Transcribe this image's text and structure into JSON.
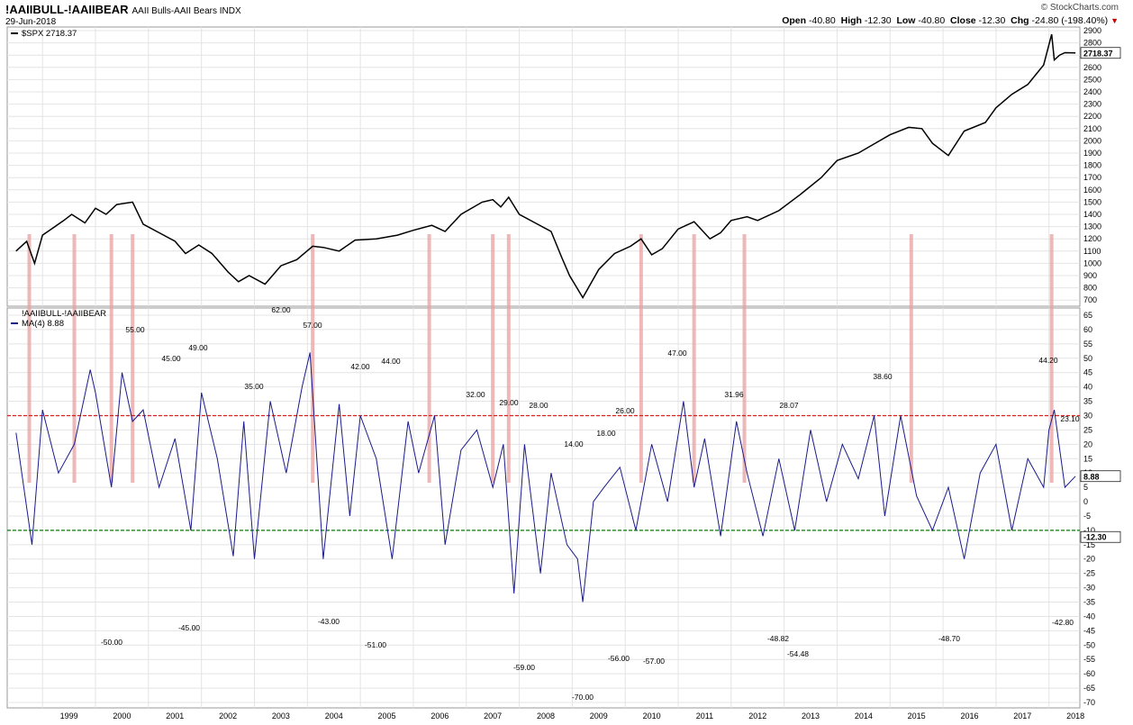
{
  "header": {
    "symbol": "!AAIIBULL-!AAIIBEAR",
    "description": "AAII Bulls-AAII Bears  INDX",
    "date": "29-Jun-2018",
    "brand": "© StockCharts.com",
    "open_label": "Open",
    "open_value": "-40.80",
    "high_label": "High",
    "high_value": "-12.30",
    "low_label": "Low",
    "low_value": "-40.80",
    "close_label": "Close",
    "close_value": "-12.30",
    "chg_label": "Chg",
    "chg_value": "-24.80 (-198.40%)"
  },
  "colors": {
    "spx_line": "#000000",
    "spread_line": "#1a1a8c",
    "highlight": "#e8a0a0",
    "upper_threshold": "#d62020",
    "lower_threshold": "#0a7a0a",
    "grid": "#e4e4e4"
  },
  "chart_data": [
    {
      "type": "line",
      "title": "$SPX",
      "legend": "$SPX 2718.37",
      "last_value_label": "2718.37",
      "ylim": [
        650,
        2900
      ],
      "yticks": [
        700,
        800,
        900,
        1000,
        1100,
        1200,
        1300,
        1400,
        1500,
        1600,
        1700,
        1800,
        1900,
        2000,
        2100,
        2200,
        2300,
        2400,
        2500,
        2600,
        2700,
        2800,
        2900
      ],
      "x": [
        1998.5,
        1998.7,
        1998.85,
        1999.0,
        1999.2,
        1999.4,
        1999.55,
        1999.8,
        2000.0,
        2000.2,
        2000.4,
        2000.7,
        2000.9,
        2001.2,
        2001.5,
        2001.7,
        2001.95,
        2002.2,
        2002.5,
        2002.7,
        2002.9,
        2003.2,
        2003.5,
        2003.8,
        2004.1,
        2004.3,
        2004.6,
        2004.9,
        2005.3,
        2005.7,
        2006.0,
        2006.35,
        2006.6,
        2006.9,
        2007.3,
        2007.5,
        2007.65,
        2007.8,
        2008.0,
        2008.3,
        2008.6,
        2008.8,
        2008.95,
        2009.2,
        2009.5,
        2009.8,
        2010.1,
        2010.3,
        2010.5,
        2010.7,
        2011.0,
        2011.3,
        2011.6,
        2011.8,
        2012.0,
        2012.3,
        2012.5,
        2012.9,
        2013.3,
        2013.7,
        2014.0,
        2014.4,
        2014.8,
        2015.0,
        2015.35,
        2015.6,
        2015.8,
        2016.1,
        2016.4,
        2016.8,
        2017.0,
        2017.3,
        2017.6,
        2017.9,
        2018.05,
        2018.1,
        2018.2,
        2018.3,
        2018.5
      ],
      "y": [
        1100,
        1180,
        1000,
        1230,
        1290,
        1350,
        1400,
        1330,
        1450,
        1400,
        1480,
        1500,
        1320,
        1250,
        1180,
        1080,
        1150,
        1080,
        930,
        850,
        900,
        830,
        980,
        1030,
        1140,
        1130,
        1100,
        1190,
        1200,
        1230,
        1270,
        1310,
        1260,
        1400,
        1500,
        1520,
        1460,
        1540,
        1400,
        1330,
        1260,
        1050,
        900,
        720,
        950,
        1080,
        1140,
        1200,
        1070,
        1120,
        1280,
        1340,
        1200,
        1250,
        1350,
        1380,
        1350,
        1430,
        1560,
        1700,
        1840,
        1900,
        2000,
        2050,
        2110,
        2100,
        1980,
        1880,
        2080,
        2150,
        2270,
        2380,
        2460,
        2620,
        2870,
        2660,
        2700,
        2720,
        2718
      ]
    },
    {
      "type": "line",
      "title": "!AAIIBULL-!AAIIBEAR",
      "legend_series": "!AAIIBULL-!AAIIBEAR",
      "legend_ma": "MA(4) 8.88",
      "last_value_label": "8.88",
      "close_value_label": "-12.30",
      "ylim": [
        -70,
        65
      ],
      "yticks": [
        65,
        60,
        55,
        50,
        45,
        40,
        35,
        30,
        25,
        20,
        15,
        10,
        5,
        0,
        -5,
        -10,
        -15,
        -20,
        -25,
        -30,
        -35,
        -40,
        -45,
        -50,
        -55,
        -60,
        -65,
        -70
      ],
      "thresholds": [
        30,
        -10
      ],
      "x": [
        1998.5,
        1998.8,
        1999.0,
        1999.3,
        1999.6,
        1999.9,
        2000.0,
        2000.3,
        2000.5,
        2000.7,
        2000.9,
        2001.2,
        2001.5,
        2001.8,
        2002.0,
        2002.3,
        2002.6,
        2002.8,
        2003.0,
        2003.3,
        2003.6,
        2003.9,
        2004.05,
        2004.3,
        2004.6,
        2004.8,
        2005.0,
        2005.3,
        2005.6,
        2005.9,
        2006.1,
        2006.4,
        2006.6,
        2006.9,
        2007.2,
        2007.5,
        2007.7,
        2007.9,
        2008.1,
        2008.4,
        2008.6,
        2008.9,
        2009.1,
        2009.2,
        2009.4,
        2009.6,
        2009.9,
        2010.2,
        2010.5,
        2010.8,
        2011.1,
        2011.3,
        2011.5,
        2011.8,
        2012.1,
        2012.3,
        2012.6,
        2012.9,
        2013.2,
        2013.5,
        2013.8,
        2014.1,
        2014.4,
        2014.7,
        2014.9,
        2015.2,
        2015.5,
        2015.8,
        2016.1,
        2016.4,
        2016.7,
        2017.0,
        2017.3,
        2017.6,
        2017.9,
        2018.0,
        2018.1,
        2018.3,
        2018.5
      ],
      "y": [
        24,
        -15,
        32,
        10,
        20,
        46,
        38,
        5,
        45,
        28,
        32,
        5,
        22,
        -10,
        38,
        15,
        -19,
        28,
        -20,
        35,
        10,
        40,
        52,
        -20,
        34,
        -5,
        30,
        15,
        -20,
        28,
        10,
        30,
        -15,
        18,
        25,
        5,
        20,
        -32,
        20,
        -25,
        10,
        -15,
        -20,
        -35,
        0,
        5,
        12,
        -10,
        20,
        0,
        35,
        5,
        22,
        -12,
        28,
        10,
        -12,
        15,
        -10,
        25,
        0,
        20,
        8,
        30,
        -5,
        30,
        2,
        -10,
        5,
        -20,
        10,
        20,
        -10,
        15,
        5,
        25,
        32,
        5,
        8.88
      ],
      "peak_labels": [
        "62.00",
        "57.00",
        "55.00",
        "49.00",
        "45.00",
        "35.00",
        "42.00",
        "44.00",
        "32.00",
        "29.00",
        "28.00",
        "14.00",
        "18.00",
        "26.00",
        "47.00",
        "31.96",
        "28.07",
        "38.60",
        "44.20",
        "23.10"
      ],
      "trough_labels": [
        "-50.00",
        "-45.00",
        "-43.00",
        "-51.00",
        "-59.00",
        "-70.00",
        "-56.00",
        "-57.00",
        "-48.82",
        "-54.48",
        "-48.70",
        "-42.80"
      ]
    }
  ],
  "x_axis": {
    "years": [
      "1999",
      "2000",
      "2001",
      "2002",
      "2003",
      "2004",
      "2005",
      "2006",
      "2007",
      "2008",
      "2009",
      "2010",
      "2011",
      "2012",
      "2013",
      "2014",
      "2015",
      "2016",
      "2017",
      "2018"
    ]
  },
  "highlight_years": [
    1998.75,
    1999.6,
    2000.3,
    2000.7,
    2004.1,
    2006.3,
    2007.5,
    2007.8,
    2010.3,
    2011.3,
    2012.25,
    2015.4,
    2018.05
  ]
}
